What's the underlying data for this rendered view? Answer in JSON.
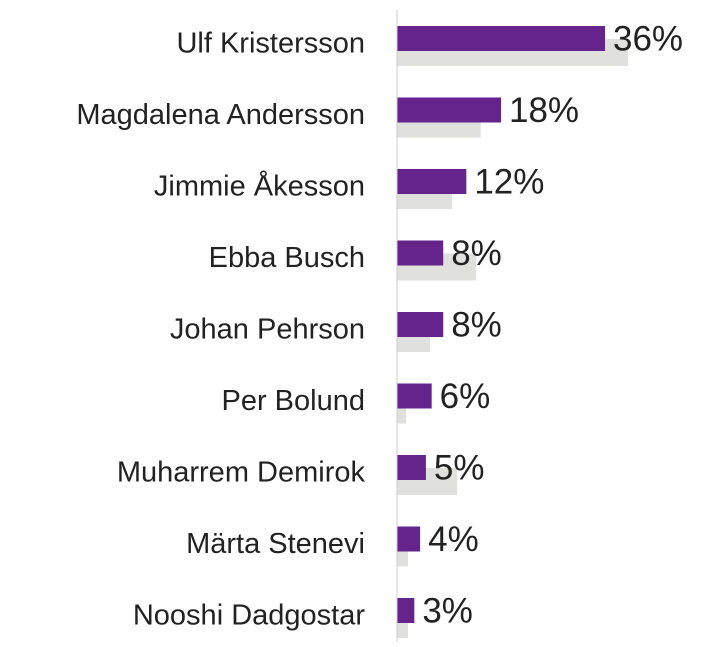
{
  "chart_data": {
    "type": "bar",
    "orientation": "horizontal",
    "categories": [
      "Ulf Kristersson",
      "Magdalena Andersson",
      "Jimmie Åkesson",
      "Ebba Busch",
      "Johan Pehrson",
      "Per Bolund",
      "Muharrem Demirok",
      "Märta Stenevi",
      "Nooshi Dadgostar"
    ],
    "series": [
      {
        "color": "#65238c",
        "values": [
          36,
          18,
          12,
          8,
          8,
          6,
          5,
          4,
          3
        ],
        "value_labels": [
          "36%",
          "18%",
          "12%",
          "8%",
          "8%",
          "6%",
          "5%",
          "4%",
          "3%"
        ]
      },
      {
        "color": "#e0e0dc",
        "values": [
          40,
          14.5,
          9.5,
          13.7,
          5.7,
          1.6,
          10.4,
          1.9,
          1.9
        ]
      }
    ],
    "xlim": [
      0,
      54
    ]
  }
}
